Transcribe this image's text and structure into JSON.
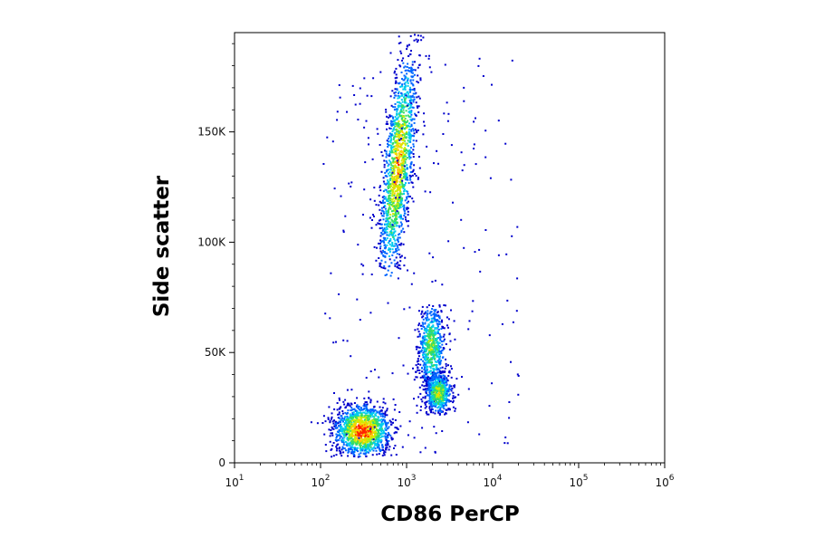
{
  "chart_data": {
    "type": "scatter",
    "title": "",
    "xlabel": "CD86 PerCP",
    "ylabel": "Side scatter",
    "x_scale": "log",
    "xlim": [
      10,
      1000000
    ],
    "ylim": [
      0,
      195000
    ],
    "x_ticks": [
      {
        "value": 10,
        "base": "10",
        "exp": "1"
      },
      {
        "value": 100,
        "base": "10",
        "exp": "2"
      },
      {
        "value": 1000,
        "base": "10",
        "exp": "3"
      },
      {
        "value": 10000,
        "base": "10",
        "exp": "4"
      },
      {
        "value": 100000,
        "base": "10",
        "exp": "5"
      },
      {
        "value": 1000000,
        "base": "10",
        "exp": "6"
      }
    ],
    "y_ticks": [
      {
        "value": 0,
        "label": "0"
      },
      {
        "value": 50000,
        "label": "50K"
      },
      {
        "value": 100000,
        "label": "100K"
      },
      {
        "value": 150000,
        "label": "150K"
      }
    ],
    "grid": false,
    "legend": "none",
    "density_colormap": [
      "#0000cc",
      "#0066ff",
      "#00ccee",
      "#33dd66",
      "#ccee00",
      "#ffcc00",
      "#ff2200"
    ],
    "populations": [
      {
        "x_center": 300,
        "y_center": 15000,
        "log_x_spread": 0.17,
        "y_spread": 6000,
        "y_min": 3000,
        "y_max": 30000,
        "peak_density": 1.0
      },
      {
        "x_center": 780,
        "y_center": 135000,
        "log_x_spread": 0.085,
        "y_spread": 27000,
        "y_min": 85000,
        "y_max": 195000,
        "slant_log_x_per_100k": 0.25,
        "peak_density": 0.85
      },
      {
        "x_center": 1900,
        "y_center": 53000,
        "log_x_spread": 0.085,
        "y_spread": 11000,
        "y_min": 28000,
        "y_max": 72000,
        "peak_density": 0.6
      },
      {
        "x_center": 2300,
        "y_center": 32000,
        "log_x_spread": 0.08,
        "y_spread": 5000,
        "y_min": 22000,
        "y_max": 42000,
        "peak_density": 0.7
      }
    ]
  }
}
